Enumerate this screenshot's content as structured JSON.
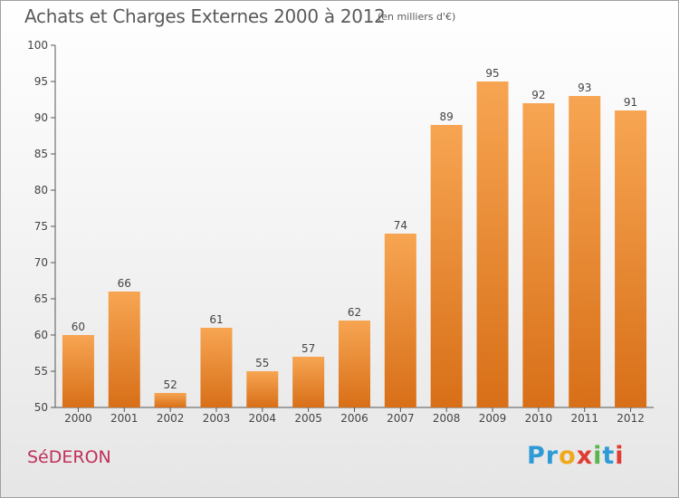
{
  "header": {
    "title": "Achats et Charges Externes 2000 à 2012",
    "subtitle": "(en milliers d'€)"
  },
  "footer": {
    "commune": "SéDERON",
    "logo_letters": [
      "P",
      "r",
      "o",
      "x",
      "i",
      "t",
      "i"
    ],
    "logo_colors": [
      "#2e9ad6",
      "#2e9ad6",
      "#f2a81d",
      "#e03c31",
      "#5ab54b",
      "#2e9ad6",
      "#e03c31"
    ]
  },
  "colors": {
    "bar_top": "#f7a552",
    "bar_bottom": "#d86f18",
    "axis": "#555555",
    "grid": "#d0d0d0",
    "text": "#444444"
  },
  "chart_data": {
    "type": "bar",
    "categories": [
      "2000",
      "2001",
      "2002",
      "2003",
      "2004",
      "2005",
      "2006",
      "2007",
      "2008",
      "2009",
      "2010",
      "2011",
      "2012"
    ],
    "values": [
      60,
      66,
      52,
      61,
      55,
      57,
      62,
      74,
      89,
      95,
      92,
      93,
      91
    ],
    "title": "Achats et Charges Externes 2000 à 2012",
    "subtitle": "(en milliers d'€)",
    "ylim": [
      50,
      100
    ],
    "yticks": [
      50,
      55,
      60,
      65,
      70,
      75,
      80,
      85,
      90,
      95,
      100
    ],
    "grid": false,
    "legend": "none"
  }
}
